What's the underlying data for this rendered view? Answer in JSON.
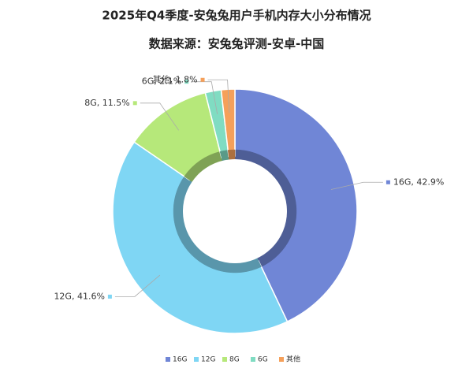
{
  "chart_data": {
    "type": "donut",
    "title": "2025年Q4季度-安兔兔用户手机内存大小分布情况",
    "subtitle": "数据来源：安兔兔评测-安卓-中国",
    "categories": [
      "16G",
      "12G",
      "8G",
      "6G",
      "其他"
    ],
    "values": [
      42.9,
      41.6,
      11.5,
      2.1,
      1.8
    ],
    "value_labels": [
      "16G, 42.9%",
      "12G, 41.6%",
      "8G, 11.5%",
      "6G, 2.1%",
      "其他, 1.8%"
    ],
    "colors": [
      "#7086d6",
      "#7fd6f4",
      "#b6e87a",
      "#80dcc2",
      "#f5a05a"
    ],
    "legend": "bottom"
  }
}
